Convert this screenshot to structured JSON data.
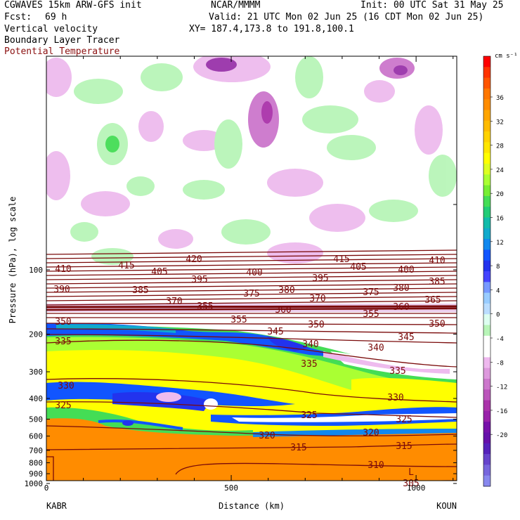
{
  "header": {
    "model": "CGWAVES 15km ARW-GFS init",
    "org": "NCAR/MMMM",
    "init": "Init: 00 UTC Sat 31 May 25",
    "fcst_label": "Fcst:",
    "fcst_value": "69 h",
    "valid": "Valid: 21 UTC Mon 02 Jun 25 (16 CDT Mon 02 Jun 25)",
    "field1": "Vertical velocity",
    "field2": "Boundary Layer Tracer",
    "field3": "Potential Temperature",
    "xy": "XY= 187.4,173.8 to 191.8,100.1"
  },
  "chart_data": {
    "type": "heatmap",
    "ylabel": "Pressure (hPa), log scale",
    "xlabel": "Distance (km)",
    "y_log": true,
    "y_ticks": [
      100,
      200,
      300,
      400,
      500,
      600,
      700,
      800,
      900,
      1000
    ],
    "x_ticks": [
      0,
      500,
      1000
    ],
    "xlim": [
      0,
      1110
    ],
    "left_station": "KABR",
    "right_station": "KOUN",
    "colorbar": {
      "unit": "cm s⁻¹",
      "labels": [
        36,
        32,
        28,
        24,
        20,
        16,
        12,
        8,
        4,
        0,
        -4,
        -8,
        -12,
        -16,
        -20
      ],
      "colors": [
        "#ff0000",
        "#ff3300",
        "#ff5500",
        "#ff7700",
        "#ff8c00",
        "#ffa500",
        "#ffbb00",
        "#ffd200",
        "#ffe600",
        "#ffff00",
        "#ddff22",
        "#aaff33",
        "#77ee33",
        "#44dd55",
        "#22cc77",
        "#11bbaa",
        "#11aacc",
        "#1188ee",
        "#1155ff",
        "#2233ee",
        "#4444ff",
        "#7799ff",
        "#99ccff",
        "#bbddff",
        "#ddfff0",
        "#b8f5b8",
        "#ffffff",
        "#ffffff",
        "#eeb8ee",
        "#dd99dd",
        "#cc77cc",
        "#bb55bb",
        "#aa33aa",
        "#9922aa",
        "#7711aa",
        "#6611aa",
        "#5522bb",
        "#6644cc",
        "#7766dd",
        "#8888ee"
      ]
    },
    "theta_contours": [
      {
        "value": "420",
        "x": 276,
        "y": 369
      },
      {
        "value": "415",
        "x": 180,
        "y": 378
      },
      {
        "value": "415",
        "x": 486,
        "y": 369
      },
      {
        "value": "410",
        "x": 90,
        "y": 383
      },
      {
        "value": "410",
        "x": 622,
        "y": 371
      },
      {
        "value": "405",
        "x": 227,
        "y": 387
      },
      {
        "value": "405",
        "x": 510,
        "y": 380
      },
      {
        "value": "400",
        "x": 362,
        "y": 388
      },
      {
        "value": "400",
        "x": 578,
        "y": 384
      },
      {
        "value": "395",
        "x": 284,
        "y": 398
      },
      {
        "value": "395",
        "x": 456,
        "y": 396
      },
      {
        "value": "390",
        "x": 88,
        "y": 412
      },
      {
        "value": "385",
        "x": 200,
        "y": 413
      },
      {
        "value": "385",
        "x": 622,
        "y": 401
      },
      {
        "value": "380",
        "x": 408,
        "y": 413
      },
      {
        "value": "380",
        "x": 571,
        "y": 410
      },
      {
        "value": "375",
        "x": 358,
        "y": 418
      },
      {
        "value": "375",
        "x": 528,
        "y": 416
      },
      {
        "value": "370",
        "x": 248,
        "y": 429
      },
      {
        "value": "370",
        "x": 452,
        "y": 425
      },
      {
        "value": "365",
        "x": 616,
        "y": 427
      },
      {
        "value": "360",
        "x": 403,
        "y": 441
      },
      {
        "value": "360",
        "x": 571,
        "y": 437
      },
      {
        "value": "355",
        "x": 292,
        "y": 436
      },
      {
        "value": "355",
        "x": 340,
        "y": 455
      },
      {
        "value": "355",
        "x": 528,
        "y": 447
      },
      {
        "value": "350",
        "x": 90,
        "y": 458
      },
      {
        "value": "350",
        "x": 450,
        "y": 462
      },
      {
        "value": "350",
        "x": 622,
        "y": 461
      },
      {
        "value": "345",
        "x": 392,
        "y": 472
      },
      {
        "value": "345",
        "x": 578,
        "y": 480
      },
      {
        "value": "340",
        "x": 442,
        "y": 490
      },
      {
        "value": "340",
        "x": 535,
        "y": 495
      },
      {
        "value": "335",
        "x": 90,
        "y": 486
      },
      {
        "value": "335",
        "x": 440,
        "y": 518
      },
      {
        "value": "335",
        "x": 566,
        "y": 528
      },
      {
        "value": "330",
        "x": 94,
        "y": 549
      },
      {
        "value": "330",
        "x": 563,
        "y": 566
      },
      {
        "value": "325",
        "x": 90,
        "y": 577
      },
      {
        "value": "325",
        "x": 440,
        "y": 591
      },
      {
        "value": "325",
        "x": 575,
        "y": 597
      },
      {
        "value": "320",
        "x": 380,
        "y": 620
      },
      {
        "value": "320",
        "x": 528,
        "y": 616
      },
      {
        "value": "315",
        "x": 425,
        "y": 637
      },
      {
        "value": "315",
        "x": 575,
        "y": 635
      },
      {
        "value": "310",
        "x": 535,
        "y": 662
      },
      {
        "value": "305",
        "x": 585,
        "y": 688
      },
      {
        "value": "L",
        "x": 585,
        "y": 672
      }
    ]
  }
}
